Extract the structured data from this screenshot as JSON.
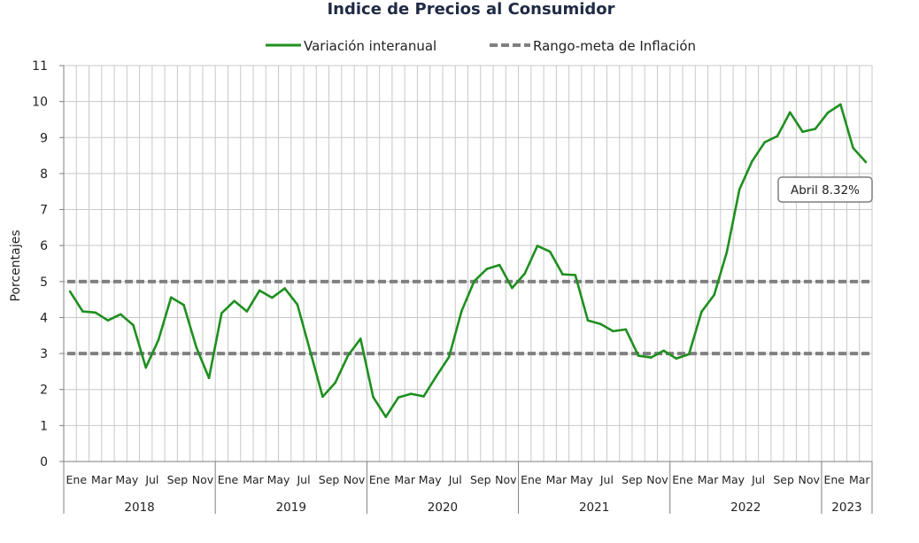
{
  "chart_data": {
    "type": "line",
    "title": "Indice de Precios al Consumidor",
    "ylabel": "Porcentajes",
    "xlabel": "",
    "ylim": [
      0,
      11
    ],
    "yticks": [
      0,
      1,
      2,
      3,
      4,
      5,
      6,
      7,
      8,
      9,
      10,
      11
    ],
    "grid": true,
    "legend_position": "top",
    "month_tick_labels": [
      "Ene",
      "Mar",
      "May",
      "Jul",
      "Sep",
      "Nov"
    ],
    "years": [
      "2018",
      "2019",
      "2020",
      "2021",
      "2022",
      "2023"
    ],
    "series": [
      {
        "name": "Variación interanual",
        "color": "#1f8f1f",
        "style": "solid",
        "values": [
          4.72,
          4.17,
          4.14,
          3.92,
          4.09,
          3.79,
          2.61,
          3.38,
          4.56,
          4.35,
          3.17,
          2.32,
          4.12,
          4.46,
          4.17,
          4.75,
          4.55,
          4.81,
          4.36,
          3.08,
          1.8,
          2.19,
          2.94,
          3.41,
          1.79,
          1.24,
          1.78,
          1.88,
          1.81,
          2.37,
          2.9,
          4.18,
          5.01,
          5.35,
          5.46,
          4.82,
          5.22,
          5.99,
          5.83,
          5.2,
          5.18,
          3.92,
          3.82,
          3.62,
          3.67,
          2.94,
          2.89,
          3.08,
          2.86,
          2.98,
          4.16,
          4.63,
          5.82,
          7.56,
          8.34,
          8.87,
          9.04,
          9.7,
          9.16,
          9.24,
          9.69,
          9.92,
          8.71,
          8.32
        ]
      },
      {
        "name": "Rango-meta de Inflación",
        "color": "#808080",
        "style": "dashed",
        "upper": 5,
        "lower": 3
      }
    ],
    "annotation": {
      "text": "Abril 8.32%"
    }
  }
}
